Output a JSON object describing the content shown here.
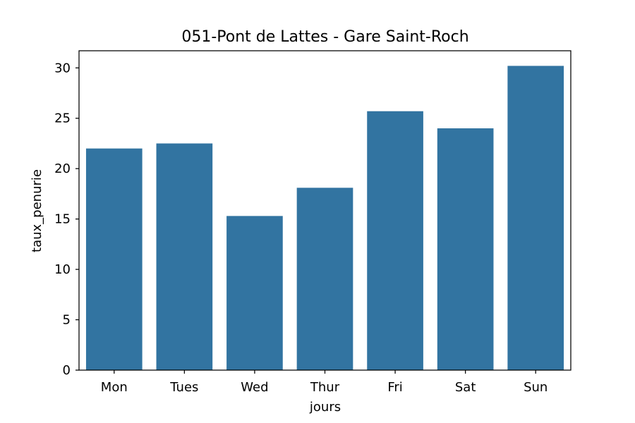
{
  "chart_data": {
    "type": "bar",
    "title": "051-Pont de Lattes - Gare Saint-Roch",
    "xlabel": "jours",
    "ylabel": "taux_penurie",
    "categories": [
      "Mon",
      "Tues",
      "Wed",
      "Thur",
      "Fri",
      "Sat",
      "Sun"
    ],
    "values": [
      22.0,
      22.5,
      15.3,
      18.1,
      25.7,
      24.0,
      30.2
    ],
    "ylim": [
      0,
      31.7
    ],
    "yticks": [
      0,
      5,
      10,
      15,
      20,
      25,
      30
    ],
    "bar_color": "#3274a1",
    "grid": false,
    "legend": "none"
  }
}
